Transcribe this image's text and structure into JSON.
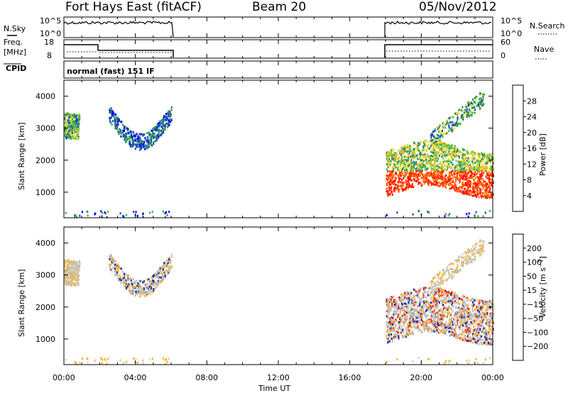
{
  "header": {
    "station": "Fort Hays East (fitACF)",
    "beam": "Beam 20",
    "date": "05/Nov/2012"
  },
  "status_panel": {
    "nsky_label": "N.Sky",
    "nsky_ticks": [
      "10^5",
      "10^0"
    ],
    "nsearch_label": "N.Search",
    "nsearch_ticks": [
      "10^5",
      "10^0"
    ],
    "freq_label": "Freq.",
    "freq_unit": "[MHz]",
    "freq_ticks": [
      "18",
      "8"
    ],
    "nave_label": "Nave",
    "nave_ticks": [
      "60",
      "0"
    ],
    "cpid_label": "CPID",
    "cpid_value": "normal (fast) 151 IF"
  },
  "colors": {
    "power": [
      "#0000ff",
      "#1e4ab4",
      "#2f8a6a",
      "#3cb04a",
      "#9ad02e",
      "#f4e02a",
      "#ffb020",
      "#ff8010",
      "#ff4000",
      "#ff0000"
    ],
    "velocity": [
      "#1a2fb0",
      "#2f6a9a",
      "#2f9a5a",
      "#6cc040",
      "#bebeb8",
      "#d8d0b0",
      "#ffb020",
      "#ff7010",
      "#ff3010",
      "#ff0000"
    ]
  },
  "chart_data": [
    {
      "type": "heatmap",
      "ylabel": "Slant Range [km]",
      "yticks": [
        "4000",
        "3000",
        "2000",
        "1000"
      ],
      "ylim": [
        200,
        4500
      ],
      "colorbar_label": "Power [dB]",
      "colorbar_ticks": [
        "28",
        "24",
        "20",
        "16",
        "12",
        "8",
        "4"
      ],
      "colorbar_range": [
        0,
        32
      ]
    },
    {
      "type": "heatmap",
      "ylabel": "Slant Range [km]",
      "yticks": [
        "4000",
        "3000",
        "2000",
        "1000"
      ],
      "ylim": [
        200,
        4500
      ],
      "colorbar_label": "Velocity [m s^-1]",
      "colorbar_ticks": [
        "200",
        "100",
        "50",
        "15",
        "−15",
        "−50",
        "−100",
        "−200"
      ]
    }
  ],
  "time_axis": {
    "label": "Time UT",
    "ticks": [
      "00:00",
      "04:00",
      "08:00",
      "12:00",
      "16:00",
      "20:00",
      "00:00"
    ],
    "range_hours": [
      0,
      24
    ]
  }
}
